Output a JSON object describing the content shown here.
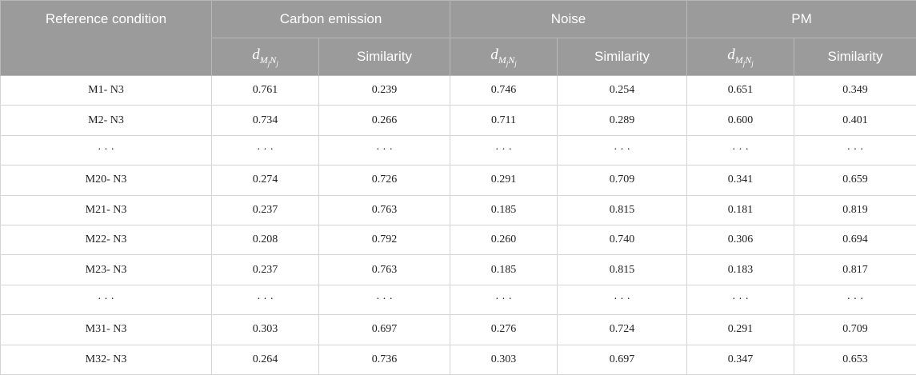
{
  "table": {
    "header": {
      "reference": "Reference condition",
      "groups": [
        "Carbon emission",
        "Noise",
        "PM"
      ],
      "subheaders": [
        {
          "symbol": "d",
          "subscript": [
            "M",
            "j",
            "N",
            "j"
          ]
        },
        "Similarity",
        {
          "symbol": "d",
          "subscript": [
            "M",
            "j",
            "N",
            "j"
          ]
        },
        "Similarity",
        {
          "symbol": "d",
          "subscript": [
            "M",
            "j",
            "N",
            "j"
          ]
        },
        "Similarity"
      ]
    },
    "rows": [
      [
        "M1- N3",
        "0.761",
        "0.239",
        "0.746",
        "0.254",
        "0.651",
        "0.349"
      ],
      [
        "M2- N3",
        "0.734",
        "0.266",
        "0.711",
        "0.289",
        "0.600",
        "0.401"
      ],
      [
        "· · ·",
        "· · ·",
        "· · ·",
        "· · ·",
        "· · ·",
        "· · ·",
        "· · ·"
      ],
      [
        "M20- N3",
        "0.274",
        "0.726",
        "0.291",
        "0.709",
        "0.341",
        "0.659"
      ],
      [
        "M21- N3",
        "0.237",
        "0.763",
        "0.185",
        "0.815",
        "0.181",
        "0.819"
      ],
      [
        "M22- N3",
        "0.208",
        "0.792",
        "0.260",
        "0.740",
        "0.306",
        "0.694"
      ],
      [
        "M23- N3",
        "0.237",
        "0.763",
        "0.185",
        "0.815",
        "0.183",
        "0.817"
      ],
      [
        "· · ·",
        "· · ·",
        "· · ·",
        "· · ·",
        "· · ·",
        "· · ·",
        "· · ·"
      ],
      [
        "M31- N3",
        "0.303",
        "0.697",
        "0.276",
        "0.724",
        "0.291",
        "0.709"
      ],
      [
        "M32- N3",
        "0.264",
        "0.736",
        "0.303",
        "0.697",
        "0.347",
        "0.653"
      ]
    ]
  }
}
